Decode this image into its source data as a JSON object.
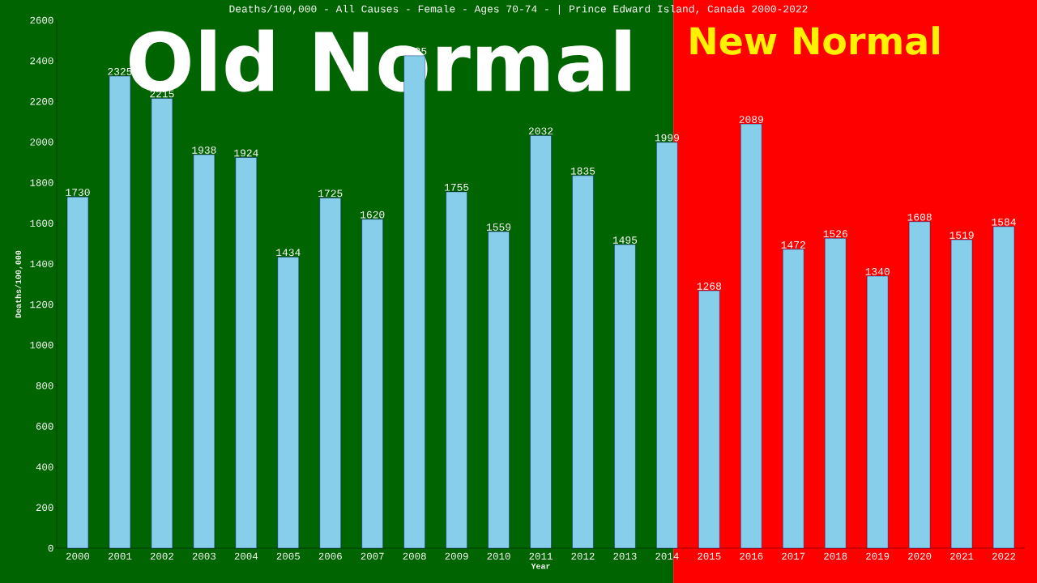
{
  "chart_data": {
    "type": "bar",
    "title": "Deaths/100,000 - All Causes - Female - Ages 70-74 -  | Prince Edward Island, Canada 2000-2022",
    "xlabel": "Year",
    "ylabel": "Deaths/100,000",
    "x": [
      2000,
      2001,
      2002,
      2003,
      2004,
      2005,
      2006,
      2007,
      2008,
      2009,
      2010,
      2011,
      2012,
      2013,
      2014,
      2015,
      2016,
      2017,
      2018,
      2019,
      2020,
      2021,
      2022
    ],
    "values": [
      1730,
      2325,
      2215,
      1938,
      1924,
      1434,
      1725,
      1620,
      2425,
      1755,
      1559,
      2032,
      1835,
      1495,
      1999,
      1268,
      2089,
      1472,
      1526,
      1340,
      1608,
      1519,
      1584
    ],
    "color": "#87ceeb",
    "data_labels": true,
    "xlim": [
      1999.5,
      2022.5
    ],
    "xticks": [
      2000,
      2001,
      2002,
      2003,
      2004,
      2005,
      2006,
      2007,
      2008,
      2009,
      2010,
      2011,
      2012,
      2013,
      2014,
      2015,
      2016,
      2017,
      2018,
      2019,
      2020,
      2021,
      2022
    ],
    "ylim": [
      0,
      2600
    ],
    "yticks": [
      0,
      200,
      400,
      600,
      800,
      1000,
      1200,
      1400,
      1600,
      1800,
      2000,
      2200,
      2400,
      2600
    ],
    "grid": false,
    "bands": [
      {
        "axis": "x",
        "from": 1999.5,
        "to": 2014.15,
        "label": "Old Normal",
        "color": "#006400"
      },
      {
        "axis": "x",
        "from": 2014.15,
        "to": 2022.5,
        "label": "New Normal",
        "color": "#ff0000"
      }
    ]
  }
}
